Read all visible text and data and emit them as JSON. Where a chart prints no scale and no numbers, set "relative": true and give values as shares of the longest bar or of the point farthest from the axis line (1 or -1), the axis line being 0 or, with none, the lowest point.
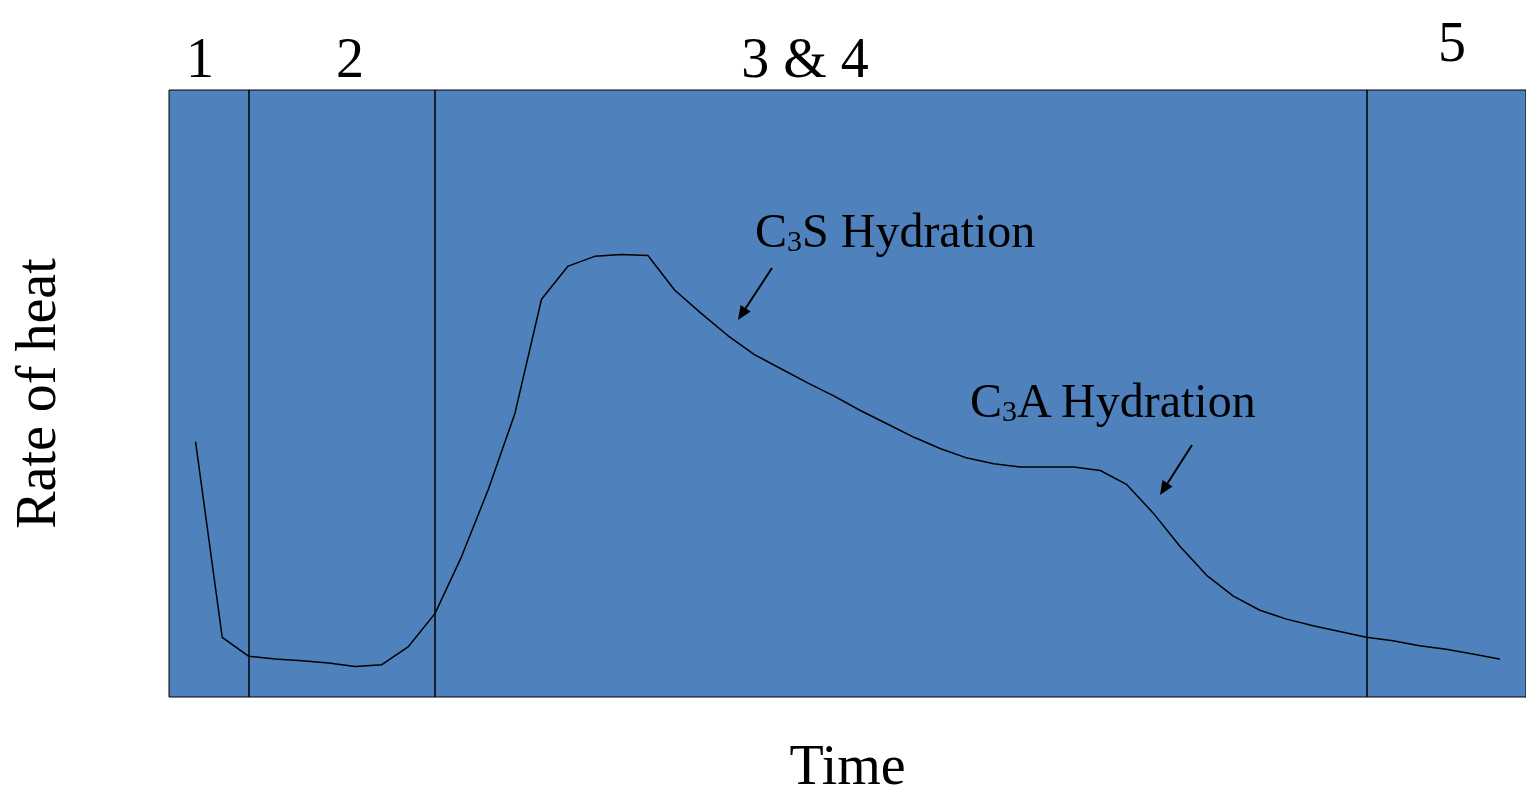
{
  "chart_data": {
    "type": "line",
    "relative": true,
    "xlabel": "Time",
    "ylabel": "Rate of heat",
    "categories": [
      null,
      null,
      null,
      null,
      null,
      null,
      null,
      null,
      null,
      null,
      null,
      null,
      null,
      null,
      null,
      null,
      null,
      null,
      null,
      null,
      null,
      null,
      null,
      null,
      null,
      null,
      null,
      null,
      null,
      null,
      null,
      null,
      null,
      null,
      null,
      null,
      null,
      null,
      null,
      null,
      null,
      null,
      null,
      null,
      null,
      null,
      null,
      null,
      null,
      null,
      null,
      null
    ],
    "series": [
      {
        "color": "#000000",
        "values": [
          null,
          0.576,
          0.135,
          0.092,
          0.086,
          0.082,
          0.077,
          0.069,
          0.073,
          0.114,
          0.189,
          0.318,
          0.469,
          0.641,
          0.899,
          0.974,
          0.996,
          1,
          0.998,
          0.92,
          0.867,
          0.817,
          0.774,
          0.742,
          0.71,
          0.68,
          0.647,
          0.617,
          0.587,
          0.561,
          0.54,
          0.527,
          0.52,
          0.52,
          0.52,
          0.512,
          0.48,
          0.415,
          0.34,
          0.275,
          0.228,
          0.196,
          0.176,
          0.161,
          0.148,
          0.135,
          0.127,
          0.116,
          0.108,
          0.097,
          0.086,
          null
        ]
      }
    ],
    "grid": "x",
    "annotations": [
      "1",
      "2",
      "3 & 4",
      "5",
      "C$_{3}$S Hydration",
      "C$_{3}$A Hydration"
    ]
  }
}
